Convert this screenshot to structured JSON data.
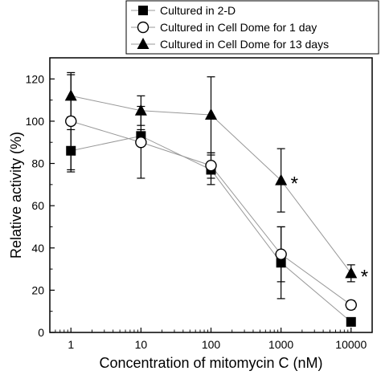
{
  "chart_data": {
    "type": "line",
    "xlabel": "Concentration of mitomycin C (nM)",
    "ylabel": "Relative activity (%)",
    "x_scale": "log",
    "xlim": [
      0.5,
      20000
    ],
    "ylim": [
      0,
      130
    ],
    "x_ticks": [
      1,
      10,
      100,
      1000,
      10000
    ],
    "x_tick_labels": [
      "1",
      "10",
      "100",
      "1000",
      "10000"
    ],
    "y_ticks": [
      0,
      20,
      40,
      60,
      80,
      100,
      120
    ],
    "y_tick_labels": [
      "0",
      "20",
      "40",
      "60",
      "80",
      "100",
      "120"
    ],
    "legend_position": "top-right",
    "line_color": "#999999",
    "series": [
      {
        "name": "Cultured in 2-D",
        "marker": "square-filled",
        "x": [
          1,
          10,
          100,
          1000,
          10000
        ],
        "y": [
          86,
          93,
          77,
          33,
          5
        ],
        "err": [
          10,
          3,
          7,
          17,
          1
        ]
      },
      {
        "name": "Cultured in Cell Dome for 1 day",
        "marker": "circle-open",
        "x": [
          1,
          10,
          100,
          1000,
          10000
        ],
        "y": [
          100,
          90,
          79,
          37,
          13
        ],
        "err": [
          23,
          17,
          6,
          13,
          2
        ]
      },
      {
        "name": "Cultured in Cell Dome for 13 days",
        "marker": "triangle-filled",
        "x": [
          1,
          10,
          100,
          1000,
          10000
        ],
        "y": [
          112,
          105,
          103,
          72,
          28
        ],
        "err": [
          10,
          7,
          18,
          15,
          4
        ]
      }
    ],
    "annotations": [
      {
        "text": "*",
        "x": 1000,
        "y": 72
      },
      {
        "text": "*",
        "x": 10000,
        "y": 28
      }
    ]
  }
}
